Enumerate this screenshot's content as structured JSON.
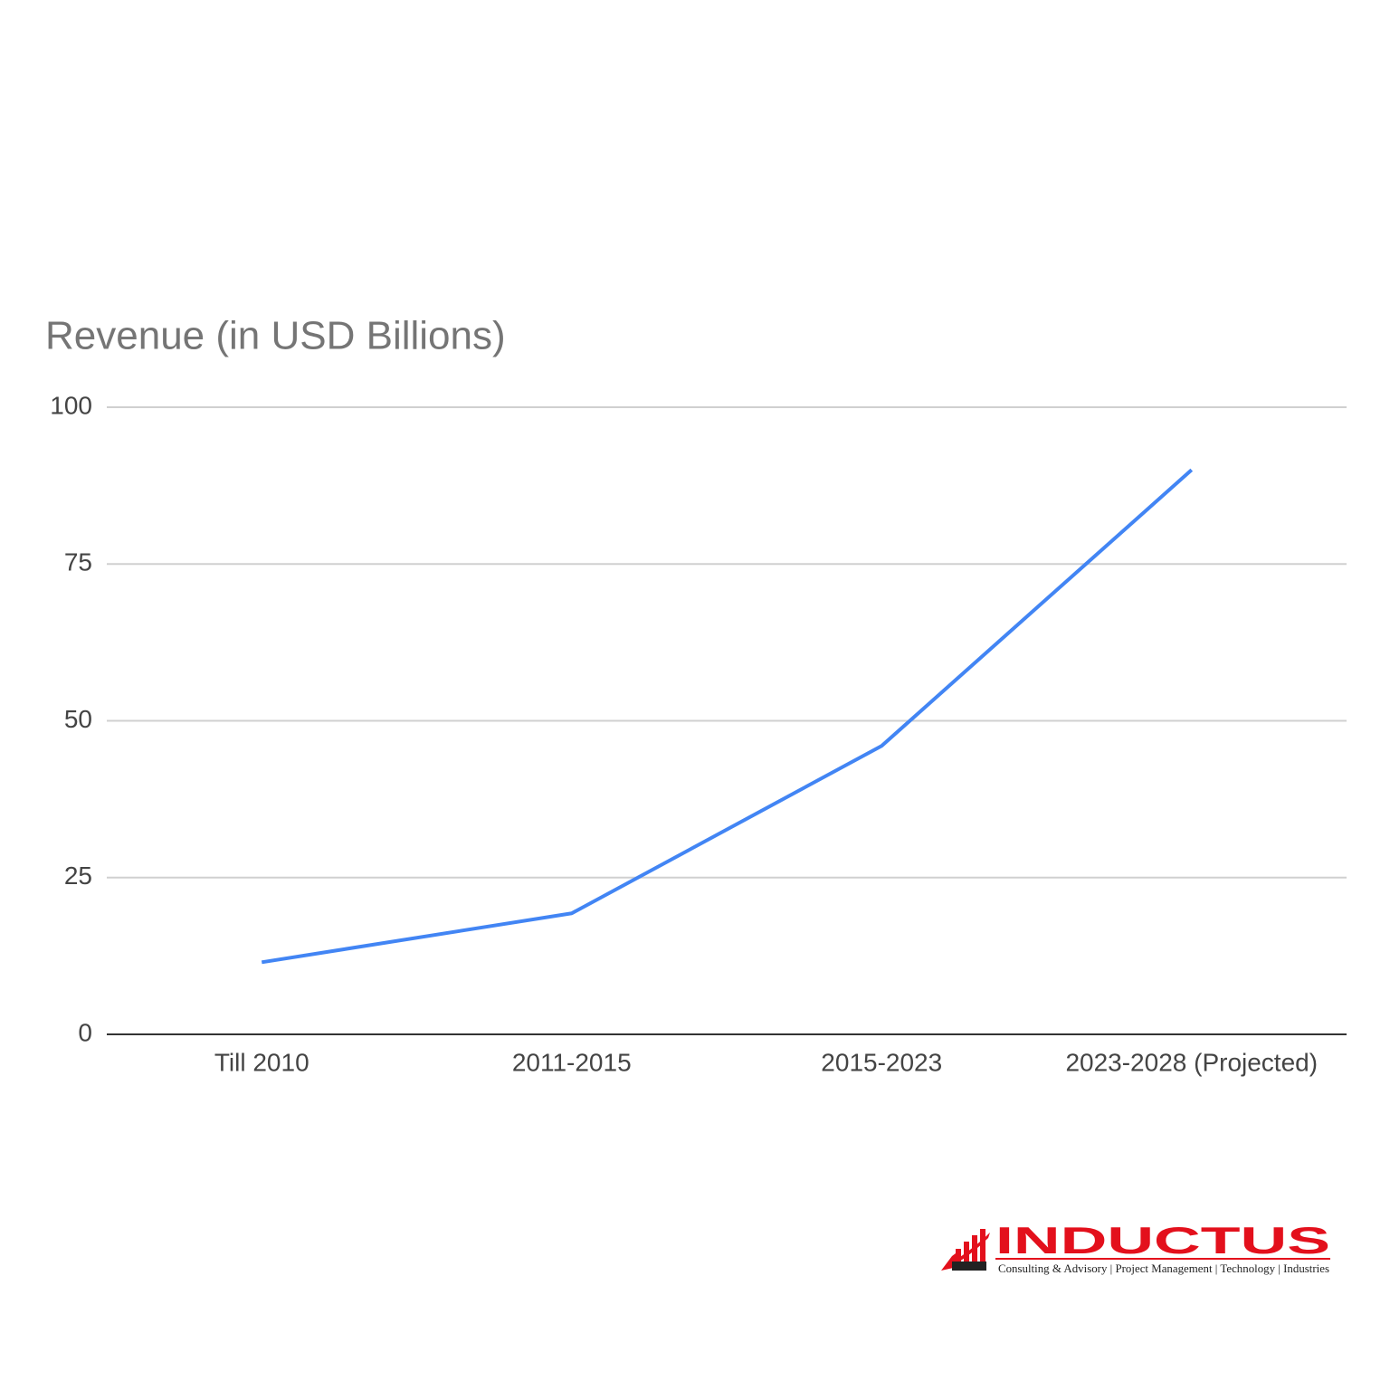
{
  "chart_data": {
    "type": "line",
    "title": "Revenue (in USD Billions)",
    "categories": [
      "Till 2010",
      "2011-2015",
      "2015-2023",
      "2023-2028 (Projected)"
    ],
    "series": [
      {
        "name": "Revenue",
        "color": "#4285f4",
        "values": [
          11.5,
          19.3,
          46,
          90
        ]
      }
    ],
    "ylim": [
      0,
      100
    ],
    "yticks": [
      0,
      25,
      50,
      75,
      100
    ],
    "grid": true
  },
  "logo": {
    "name": "INDUCTUS",
    "tagline": "Consulting & Advisory | Project Management | Technology | Industries"
  }
}
